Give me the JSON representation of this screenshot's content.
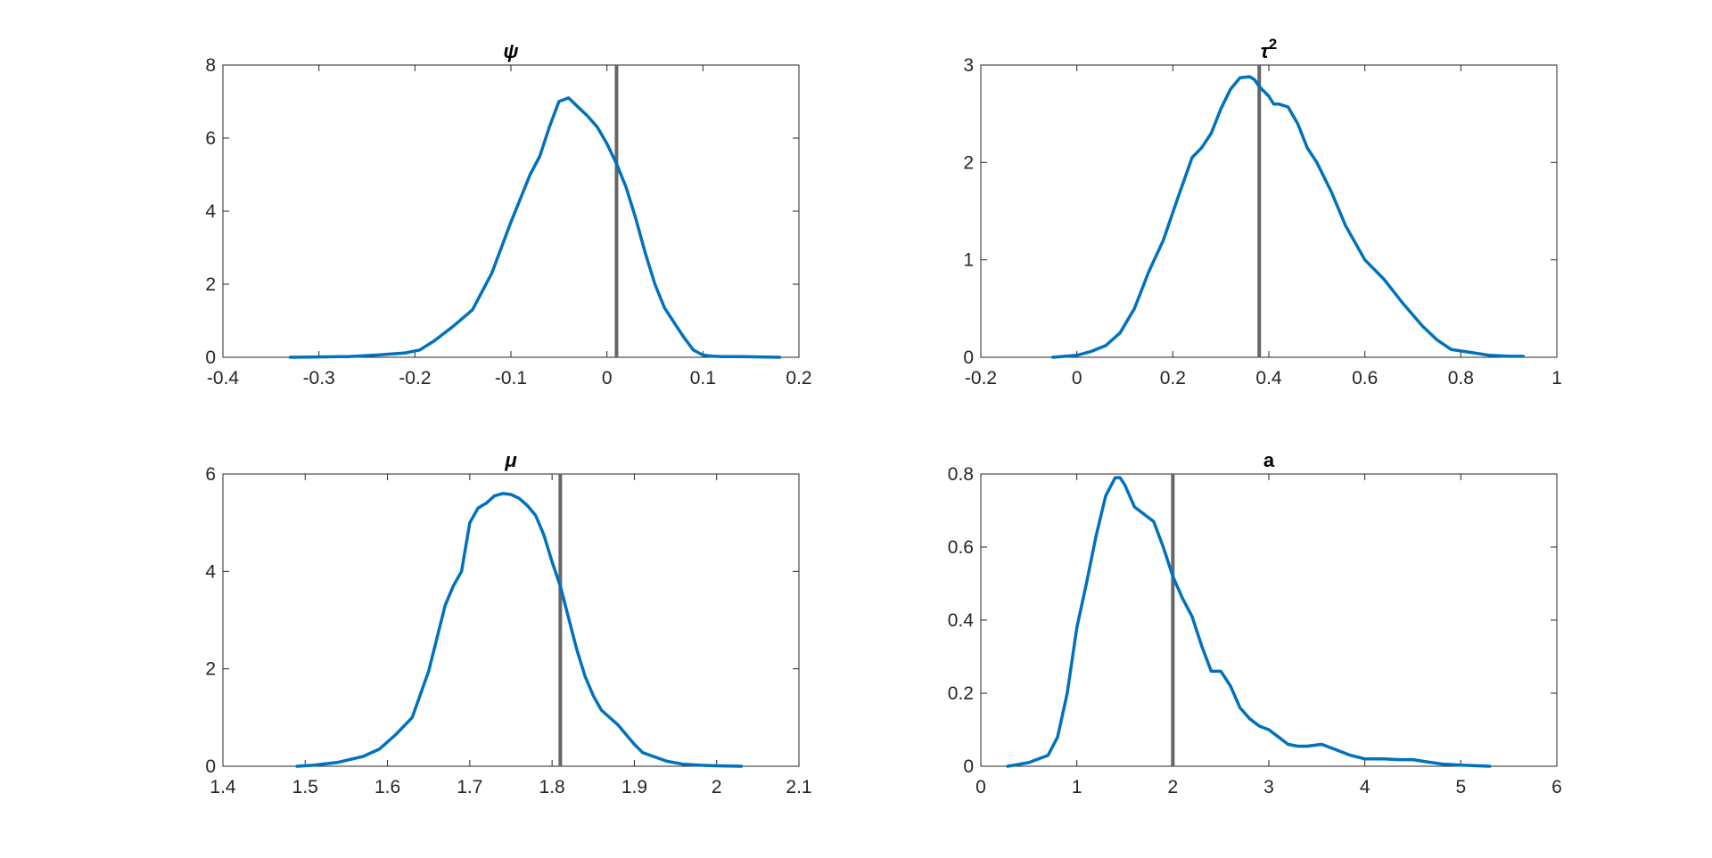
{
  "chart_data": [
    {
      "type": "line",
      "title": "ψ",
      "xlabel": "",
      "ylabel": "",
      "xlim": [
        -0.4,
        0.2
      ],
      "ylim": [
        0,
        8
      ],
      "xticks": [
        -0.4,
        -0.3,
        -0.2,
        -0.1,
        0,
        0.1,
        0.2
      ],
      "xtick_labels": [
        "-0.4",
        "-0.3",
        "-0.2",
        "-0.1",
        "0",
        "0.1",
        "0.2"
      ],
      "yticks": [
        0,
        2,
        4,
        6,
        8
      ],
      "ytick_labels": [
        "0",
        "2",
        "4",
        "6",
        "8"
      ],
      "grid": false,
      "reference_line_x": 0.01,
      "series": [
        {
          "x": [
            -0.33,
            -0.3,
            -0.27,
            -0.24,
            -0.21,
            -0.195,
            -0.18,
            -0.16,
            -0.14,
            -0.12,
            -0.1,
            -0.08,
            -0.07,
            -0.06,
            -0.05,
            -0.04,
            -0.03,
            -0.02,
            -0.01,
            0,
            0.01,
            0.02,
            0.03,
            0.04,
            0.05,
            0.06,
            0.07,
            0.08,
            0.09,
            0.1,
            0.11,
            0.12,
            0.14,
            0.16,
            0.18
          ],
          "y": [
            0.0,
            0.01,
            0.02,
            0.06,
            0.12,
            0.2,
            0.45,
            0.85,
            1.3,
            2.3,
            3.7,
            5.0,
            5.5,
            6.3,
            7.0,
            7.1,
            6.85,
            6.6,
            6.3,
            5.85,
            5.3,
            4.65,
            3.8,
            2.85,
            2.0,
            1.35,
            0.95,
            0.55,
            0.2,
            0.06,
            0.03,
            0.02,
            0.02,
            0.01,
            0.0
          ]
        }
      ]
    },
    {
      "type": "line",
      "title": "τ2",
      "xlabel": "",
      "ylabel": "",
      "xlim": [
        -0.2,
        1
      ],
      "ylim": [
        0,
        3
      ],
      "xticks": [
        -0.2,
        0,
        0.2,
        0.4,
        0.6,
        0.8,
        1
      ],
      "xtick_labels": [
        "-0.2",
        "0",
        "0.2",
        "0.4",
        "0.6",
        "0.8",
        "1"
      ],
      "yticks": [
        0,
        1,
        2,
        3
      ],
      "ytick_labels": [
        "0",
        "1",
        "2",
        "3"
      ],
      "grid": false,
      "reference_line_x": 0.38,
      "series": [
        {
          "x": [
            -0.05,
            0,
            0.03,
            0.06,
            0.09,
            0.12,
            0.15,
            0.18,
            0.21,
            0.24,
            0.26,
            0.28,
            0.3,
            0.32,
            0.34,
            0.36,
            0.37,
            0.38,
            0.4,
            0.41,
            0.42,
            0.44,
            0.46,
            0.48,
            0.5,
            0.53,
            0.56,
            0.6,
            0.64,
            0.68,
            0.72,
            0.75,
            0.78,
            0.82,
            0.86,
            0.9,
            0.93
          ],
          "y": [
            0.0,
            0.02,
            0.06,
            0.12,
            0.25,
            0.5,
            0.88,
            1.2,
            1.63,
            2.05,
            2.15,
            2.3,
            2.55,
            2.75,
            2.87,
            2.88,
            2.85,
            2.78,
            2.68,
            2.6,
            2.6,
            2.57,
            2.4,
            2.15,
            2.0,
            1.7,
            1.35,
            1.0,
            0.8,
            0.55,
            0.32,
            0.18,
            0.08,
            0.05,
            0.02,
            0.01,
            0.01
          ]
        }
      ]
    },
    {
      "type": "line",
      "title": "μ",
      "xlabel": "",
      "ylabel": "",
      "xlim": [
        1.4,
        2.1
      ],
      "ylim": [
        0,
        6
      ],
      "xticks": [
        1.4,
        1.5,
        1.6,
        1.7,
        1.8,
        1.9,
        2,
        2.1
      ],
      "xtick_labels": [
        "1.4",
        "1.5",
        "1.6",
        "1.7",
        "1.8",
        "1.9",
        "2",
        "2.1"
      ],
      "yticks": [
        0,
        2,
        4,
        6
      ],
      "ytick_labels": [
        "0",
        "2",
        "4",
        "6"
      ],
      "grid": false,
      "reference_line_x": 1.81,
      "series": [
        {
          "x": [
            1.49,
            1.51,
            1.54,
            1.57,
            1.59,
            1.61,
            1.63,
            1.65,
            1.67,
            1.68,
            1.69,
            1.7,
            1.71,
            1.72,
            1.73,
            1.74,
            1.75,
            1.76,
            1.77,
            1.78,
            1.79,
            1.8,
            1.81,
            1.82,
            1.83,
            1.84,
            1.85,
            1.86,
            1.87,
            1.88,
            1.89,
            1.9,
            1.91,
            1.92,
            1.94,
            1.96,
            1.98,
            2.0,
            2.03
          ],
          "y": [
            0.0,
            0.02,
            0.08,
            0.2,
            0.35,
            0.65,
            1.0,
            1.95,
            3.3,
            3.7,
            4.0,
            5.0,
            5.3,
            5.4,
            5.55,
            5.6,
            5.58,
            5.5,
            5.35,
            5.15,
            4.75,
            4.2,
            3.7,
            3.05,
            2.4,
            1.85,
            1.45,
            1.15,
            1.0,
            0.85,
            0.65,
            0.45,
            0.28,
            0.22,
            0.1,
            0.04,
            0.02,
            0.01,
            0.0
          ]
        }
      ]
    },
    {
      "type": "line",
      "title": "a",
      "xlabel": "",
      "ylabel": "",
      "xlim": [
        0,
        6
      ],
      "ylim": [
        0,
        0.8
      ],
      "xticks": [
        0,
        1,
        2,
        3,
        4,
        5,
        6
      ],
      "xtick_labels": [
        "0",
        "1",
        "2",
        "3",
        "4",
        "5",
        "6"
      ],
      "yticks": [
        0,
        0.2,
        0.4,
        0.6,
        0.8
      ],
      "ytick_labels": [
        "0",
        "0.2",
        "0.4",
        "0.6",
        "0.8"
      ],
      "grid": false,
      "reference_line_x": 2.0,
      "series": [
        {
          "x": [
            0.28,
            0.5,
            0.7,
            0.8,
            0.9,
            1.0,
            1.1,
            1.2,
            1.3,
            1.4,
            1.45,
            1.5,
            1.6,
            1.7,
            1.8,
            1.9,
            2.0,
            2.1,
            2.2,
            2.3,
            2.4,
            2.5,
            2.6,
            2.7,
            2.8,
            2.9,
            3.0,
            3.1,
            3.2,
            3.3,
            3.4,
            3.55,
            3.7,
            3.85,
            4.0,
            4.2,
            4.35,
            4.5,
            4.65,
            4.8,
            5.0,
            5.3
          ],
          "y": [
            0.0,
            0.01,
            0.03,
            0.08,
            0.2,
            0.38,
            0.5,
            0.63,
            0.74,
            0.79,
            0.79,
            0.77,
            0.71,
            0.69,
            0.67,
            0.6,
            0.52,
            0.46,
            0.41,
            0.33,
            0.26,
            0.26,
            0.22,
            0.16,
            0.13,
            0.11,
            0.1,
            0.08,
            0.06,
            0.055,
            0.055,
            0.06,
            0.045,
            0.03,
            0.02,
            0.02,
            0.018,
            0.018,
            0.012,
            0.006,
            0.003,
            0.0
          ]
        }
      ]
    }
  ],
  "colors": {
    "series": "#0072bd",
    "reference_line": "#666666",
    "axes": "#262626"
  }
}
